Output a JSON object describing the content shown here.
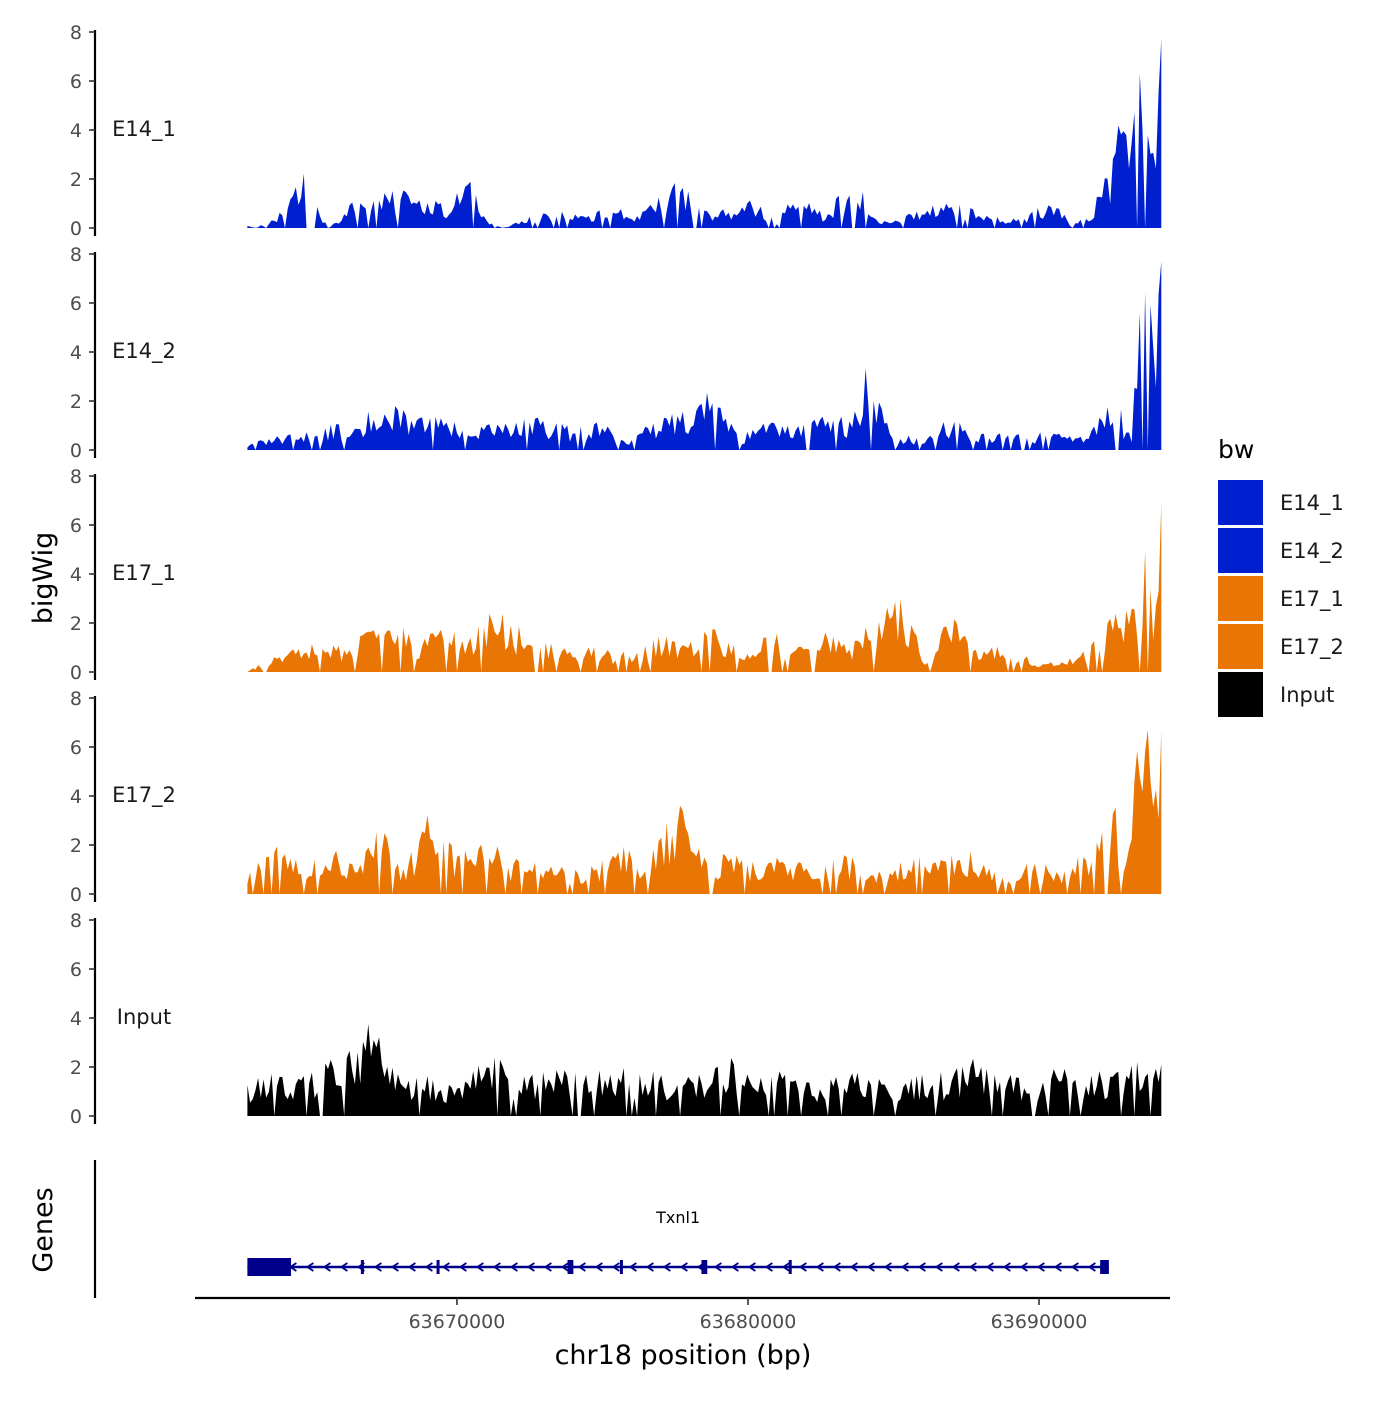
{
  "chart_data": {
    "type": "area",
    "ylabel": "bigWig",
    "xlabel": "chr18 position (bp)",
    "genes_label": "Genes",
    "ylim": [
      0,
      8
    ],
    "y_ticks": [
      0,
      2,
      4,
      6,
      8
    ],
    "x_range": [
      63661000,
      63694500
    ],
    "x_ticks": [
      63670000,
      63680000,
      63690000
    ],
    "x_tick_labels": [
      "63670000",
      "63680000",
      "63690000"
    ],
    "legend": {
      "title": "bw",
      "items": [
        {
          "label": "E14_1",
          "color": "#0020D0"
        },
        {
          "label": "E14_2",
          "color": "#0020D0"
        },
        {
          "label": "E17_1",
          "color": "#E87504"
        },
        {
          "label": "E17_2",
          "color": "#E87504"
        },
        {
          "label": "Input",
          "color": "#000000"
        }
      ]
    },
    "track_x_start": 63662800,
    "track_x_end": 63694200,
    "tracks": [
      {
        "name": "E14_1",
        "color": "#0020D0",
        "knots": [
          [
            0,
            0.1
          ],
          [
            0.01,
            0
          ],
          [
            0.04,
            0.6
          ],
          [
            0.05,
            1.3
          ],
          [
            0.07,
            2.0
          ],
          [
            0.08,
            0.6
          ],
          [
            0.09,
            0
          ],
          [
            0.12,
            1.0
          ],
          [
            0.14,
            0.8
          ],
          [
            0.17,
            1.6
          ],
          [
            0.19,
            1.0
          ],
          [
            0.22,
            0.7
          ],
          [
            0.24,
            2.0
          ],
          [
            0.26,
            0.3
          ],
          [
            0.28,
            0
          ],
          [
            0.32,
            0.5
          ],
          [
            0.36,
            0.5
          ],
          [
            0.4,
            0.6
          ],
          [
            0.43,
            0.5
          ],
          [
            0.47,
            1.8
          ],
          [
            0.49,
            0.7
          ],
          [
            0.52,
            0.6
          ],
          [
            0.55,
            0.9
          ],
          [
            0.58,
            0.3
          ],
          [
            0.6,
            1.1
          ],
          [
            0.63,
            0.5
          ],
          [
            0.67,
            1.7
          ],
          [
            0.69,
            0.2
          ],
          [
            0.72,
            0.4
          ],
          [
            0.75,
            0.7
          ],
          [
            0.78,
            0.8
          ],
          [
            0.8,
            0.7
          ],
          [
            0.83,
            0.3
          ],
          [
            0.86,
            0.5
          ],
          [
            0.88,
            1.0
          ],
          [
            0.9,
            0.2
          ],
          [
            0.92,
            0.3
          ],
          [
            0.945,
            2.0
          ],
          [
            0.952,
            3.5
          ],
          [
            0.96,
            4.3
          ],
          [
            0.965,
            3.0
          ],
          [
            0.97,
            4.9
          ],
          [
            0.975,
            4.5
          ],
          [
            0.98,
            6.0
          ],
          [
            0.985,
            4.0
          ],
          [
            0.99,
            3.0
          ],
          [
            0.995,
            3.5
          ],
          [
            0.999,
            7.7
          ]
        ]
      },
      {
        "name": "E14_2",
        "color": "#0020D0",
        "knots": [
          [
            0,
            0.2
          ],
          [
            0.04,
            0.5
          ],
          [
            0.08,
            0.7
          ],
          [
            0.12,
            1.0
          ],
          [
            0.15,
            1.4
          ],
          [
            0.18,
            1.3
          ],
          [
            0.21,
            1.0
          ],
          [
            0.25,
            0.8
          ],
          [
            0.28,
            0.9
          ],
          [
            0.32,
            1.0
          ],
          [
            0.36,
            0.7
          ],
          [
            0.39,
            0.9
          ],
          [
            0.42,
            0.3
          ],
          [
            0.45,
            1.1
          ],
          [
            0.48,
            1.2
          ],
          [
            0.51,
            2.6
          ],
          [
            0.54,
            0.5
          ],
          [
            0.57,
            1.0
          ],
          [
            0.6,
            0.7
          ],
          [
            0.63,
            1.3
          ],
          [
            0.66,
            1.0
          ],
          [
            0.68,
            2.8
          ],
          [
            0.71,
            0.4
          ],
          [
            0.74,
            0.5
          ],
          [
            0.77,
            1.0
          ],
          [
            0.8,
            0.5
          ],
          [
            0.83,
            0.6
          ],
          [
            0.86,
            0.5
          ],
          [
            0.88,
            0.7
          ],
          [
            0.9,
            0.5
          ],
          [
            0.92,
            0.6
          ],
          [
            0.95,
            1.9
          ],
          [
            0.96,
            0.8
          ],
          [
            0.97,
            0.6
          ],
          [
            0.97,
            3.1
          ],
          [
            0.985,
            6.2
          ],
          [
            0.99,
            3.5
          ],
          [
            0.995,
            4.3
          ],
          [
            0.999,
            7.7
          ]
        ]
      },
      {
        "name": "E17_1",
        "color": "#E87504",
        "knots": [
          [
            0,
            0
          ],
          [
            0.01,
            0.2
          ],
          [
            0.04,
            0.6
          ],
          [
            0.07,
            0.9
          ],
          [
            0.1,
            0.8
          ],
          [
            0.13,
            1.2
          ],
          [
            0.16,
            1.6
          ],
          [
            0.19,
            0.9
          ],
          [
            0.21,
            1.5
          ],
          [
            0.24,
            1.0
          ],
          [
            0.27,
            2.1
          ],
          [
            0.3,
            1.4
          ],
          [
            0.33,
            1.1
          ],
          [
            0.36,
            0.9
          ],
          [
            0.39,
            0.7
          ],
          [
            0.42,
            0.6
          ],
          [
            0.45,
            1.2
          ],
          [
            0.48,
            0.8
          ],
          [
            0.51,
            1.5
          ],
          [
            0.54,
            0.6
          ],
          [
            0.57,
            1.3
          ],
          [
            0.6,
            1.1
          ],
          [
            0.63,
            1.6
          ],
          [
            0.66,
            0.8
          ],
          [
            0.69,
            2.1
          ],
          [
            0.72,
            2.4
          ],
          [
            0.74,
            0.3
          ],
          [
            0.77,
            1.8
          ],
          [
            0.8,
            0.6
          ],
          [
            0.82,
            0.8
          ],
          [
            0.85,
            0.5
          ],
          [
            0.88,
            0.3
          ],
          [
            0.91,
            0.6
          ],
          [
            0.93,
            1.1
          ],
          [
            0.95,
            2.1
          ],
          [
            0.96,
            1.8
          ],
          [
            0.97,
            2.8
          ],
          [
            0.98,
            3.1
          ],
          [
            0.985,
            4.6
          ],
          [
            0.99,
            2.4
          ],
          [
            0.995,
            3.3
          ],
          [
            0.999,
            6.9
          ]
        ]
      },
      {
        "name": "E17_2",
        "color": "#E87504",
        "knots": [
          [
            0,
            0.6
          ],
          [
            0.03,
            1.6
          ],
          [
            0.06,
            0.9
          ],
          [
            0.09,
            1.6
          ],
          [
            0.12,
            1.2
          ],
          [
            0.14,
            3.1
          ],
          [
            0.17,
            0.8
          ],
          [
            0.2,
            2.6
          ],
          [
            0.23,
            1.2
          ],
          [
            0.26,
            1.9
          ],
          [
            0.29,
            1.1
          ],
          [
            0.32,
            1.0
          ],
          [
            0.35,
            0.8
          ],
          [
            0.38,
            1.0
          ],
          [
            0.41,
            1.5
          ],
          [
            0.44,
            1.1
          ],
          [
            0.47,
            2.9
          ],
          [
            0.5,
            1.3
          ],
          [
            0.53,
            1.2
          ],
          [
            0.56,
            1.0
          ],
          [
            0.59,
            1.3
          ],
          [
            0.62,
            0.8
          ],
          [
            0.65,
            1.5
          ],
          [
            0.68,
            0.6
          ],
          [
            0.71,
            1.0
          ],
          [
            0.74,
            1.4
          ],
          [
            0.77,
            1.6
          ],
          [
            0.8,
            1.2
          ],
          [
            0.83,
            0.6
          ],
          [
            0.86,
            1.0
          ],
          [
            0.89,
            0.9
          ],
          [
            0.92,
            1.3
          ],
          [
            0.95,
            2.7
          ],
          [
            0.96,
            1.3
          ],
          [
            0.97,
            3.2
          ],
          [
            0.975,
            5.1
          ],
          [
            0.98,
            3.8
          ],
          [
            0.985,
            5.1
          ],
          [
            0.99,
            4.0
          ],
          [
            0.995,
            3.4
          ],
          [
            0.999,
            6.7
          ]
        ]
      },
      {
        "name": "Input",
        "color": "#000000",
        "knots": [
          [
            0,
            1.0
          ],
          [
            0.03,
            1.6
          ],
          [
            0.06,
            1.2
          ],
          [
            0.09,
            1.8
          ],
          [
            0.12,
            2.4
          ],
          [
            0.14,
            3.1
          ],
          [
            0.17,
            1.4
          ],
          [
            0.2,
            1.2
          ],
          [
            0.23,
            1.0
          ],
          [
            0.26,
            2.6
          ],
          [
            0.29,
            1.2
          ],
          [
            0.32,
            1.4
          ],
          [
            0.35,
            1.6
          ],
          [
            0.38,
            1.3
          ],
          [
            0.41,
            1.8
          ],
          [
            0.44,
            1.4
          ],
          [
            0.47,
            1.2
          ],
          [
            0.5,
            1.4
          ],
          [
            0.53,
            1.9
          ],
          [
            0.56,
            1.2
          ],
          [
            0.59,
            1.6
          ],
          [
            0.62,
            1.1
          ],
          [
            0.65,
            1.2
          ],
          [
            0.68,
            1.5
          ],
          [
            0.71,
            1.2
          ],
          [
            0.74,
            1.3
          ],
          [
            0.77,
            1.4
          ],
          [
            0.8,
            1.9
          ],
          [
            0.83,
            1.4
          ],
          [
            0.86,
            1.3
          ],
          [
            0.89,
            1.5
          ],
          [
            0.92,
            1.3
          ],
          [
            0.95,
            1.6
          ],
          [
            0.97,
            2.0
          ],
          [
            0.98,
            1.5
          ],
          [
            0.99,
            1.3
          ],
          [
            0.999,
            2.1
          ]
        ]
      }
    ],
    "genes": [
      {
        "name": "Txnl1",
        "strand": "-",
        "start": 63662800,
        "end": 63692400,
        "color": "#00008B",
        "exons": [
          [
            63662800,
            63664300
          ],
          [
            63666700,
            63666800
          ],
          [
            63669300,
            63669400
          ],
          [
            63673800,
            63674000
          ],
          [
            63675600,
            63675700
          ],
          [
            63678400,
            63678600
          ],
          [
            63681400,
            63681500
          ],
          [
            63692100,
            63692400
          ]
        ]
      }
    ]
  }
}
